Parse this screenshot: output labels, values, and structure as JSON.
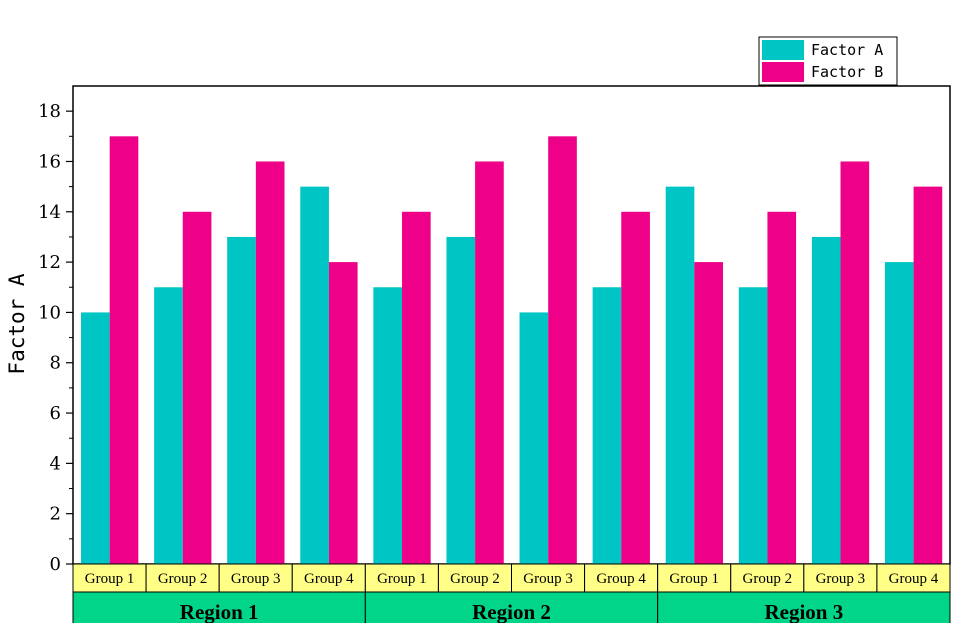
{
  "chart_data": {
    "type": "bar",
    "ylabel": "Factor A",
    "xlabel": "",
    "ylim": [
      0,
      19
    ],
    "yticks": [
      0,
      2,
      4,
      6,
      8,
      10,
      12,
      14,
      16,
      18
    ],
    "legend_position": "top-right",
    "regions": [
      "Region 1",
      "Region 2",
      "Region 3"
    ],
    "groups": [
      "Group 1",
      "Group 2",
      "Group 3",
      "Group 4"
    ],
    "categories": [
      "Region 1 Group 1",
      "Region 1 Group 2",
      "Region 1 Group 3",
      "Region 1 Group 4",
      "Region 2 Group 1",
      "Region 2 Group 2",
      "Region 2 Group 3",
      "Region 2 Group 4",
      "Region 3 Group 1",
      "Region 3 Group 2",
      "Region 3 Group 3",
      "Region 3 Group 4"
    ],
    "series": [
      {
        "name": "Factor A",
        "color": "#00C5C5",
        "values": [
          10,
          11,
          13,
          15,
          11,
          13,
          10,
          11,
          15,
          11,
          13,
          12
        ]
      },
      {
        "name": "Factor B",
        "color": "#EE0088",
        "values": [
          17,
          14,
          16,
          12,
          14,
          16,
          17,
          14,
          12,
          14,
          16,
          15
        ]
      }
    ],
    "group_row_color": "#FFFF88",
    "region_row_color": "#00D588"
  }
}
